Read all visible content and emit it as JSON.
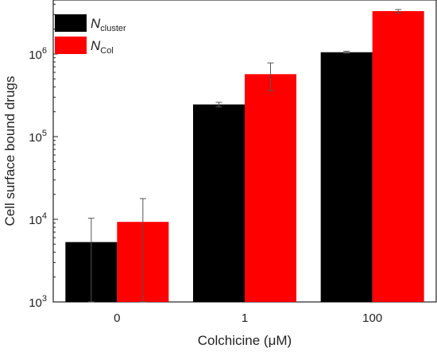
{
  "chart_data": {
    "type": "bar",
    "categories": [
      "0",
      "1",
      "100"
    ],
    "series": [
      {
        "name": "N_cluster",
        "color": "#000000",
        "values": [
          5300,
          245000,
          1050000
        ],
        "errors": [
          5000,
          15000,
          30000
        ]
      },
      {
        "name": "N_Col",
        "color": "#ff0000",
        "values": [
          9300,
          570000,
          3300000
        ],
        "errors": [
          8500,
          210000,
          150000
        ]
      }
    ],
    "legend": [
      {
        "main": "N",
        "sub": "cluster",
        "color": "#000000"
      },
      {
        "main": "N",
        "sub": "Col",
        "color": "#ff0000"
      }
    ],
    "xlabel": "Colchicine (μM)",
    "ylabel": "Cell surface bound drugs",
    "yscale": "log",
    "ylim": [
      1000,
      4500000
    ],
    "yticks": [
      {
        "value": 1000,
        "base": "10",
        "exp": "3"
      },
      {
        "value": 10000,
        "base": "10",
        "exp": "4"
      },
      {
        "value": 100000,
        "base": "10",
        "exp": "5"
      },
      {
        "value": 1000000,
        "base": "10",
        "exp": "6"
      }
    ],
    "legend_position": "top-left",
    "grid": false
  }
}
